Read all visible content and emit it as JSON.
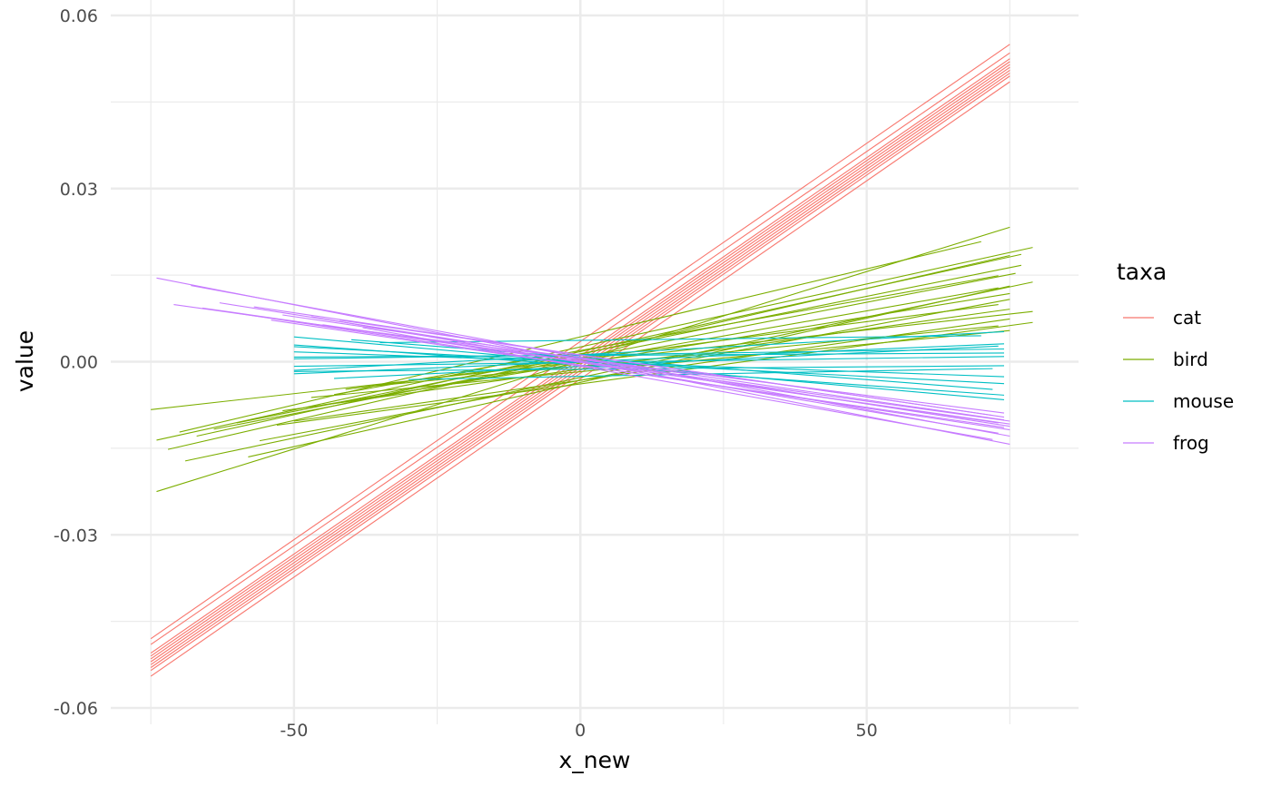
{
  "chart_data": {
    "type": "line",
    "title": "",
    "xlabel": "x_new",
    "ylabel": "value",
    "xlim": [
      -82,
      87
    ],
    "ylim": [
      -0.06,
      0.06
    ],
    "x_ticks": [
      -50,
      0,
      50
    ],
    "x_tick_labels": [
      "-50",
      "0",
      "50"
    ],
    "x_minor_ticks": [
      -75,
      -25,
      25,
      75
    ],
    "y_ticks": [
      -0.06,
      -0.03,
      0.0,
      0.03,
      0.06
    ],
    "y_tick_labels": [
      "-0.06",
      "-0.03",
      "0.00",
      "0.03",
      "0.06"
    ],
    "y_minor_ticks": [
      -0.045,
      -0.015,
      0.015,
      0.045
    ],
    "grid": true,
    "legend": {
      "title": "taxa",
      "position": "right"
    },
    "series": [
      {
        "name": "cat",
        "color": "#F8766D",
        "lines": [
          {
            "x": [
              -75,
              75
            ],
            "y": [
              -0.048,
              0.055
            ]
          },
          {
            "x": [
              -75,
              75
            ],
            "y": [
              -0.049,
              0.0535
            ]
          },
          {
            "x": [
              -75,
              75
            ],
            "y": [
              -0.0505,
              0.0525
            ]
          },
          {
            "x": [
              -75,
              75
            ],
            "y": [
              -0.051,
              0.052
            ]
          },
          {
            "x": [
              -75,
              75
            ],
            "y": [
              -0.0515,
              0.0515
            ]
          },
          {
            "x": [
              -75,
              75
            ],
            "y": [
              -0.052,
              0.051
            ]
          },
          {
            "x": [
              -75,
              75
            ],
            "y": [
              -0.0525,
              0.0505
            ]
          },
          {
            "x": [
              -75,
              75
            ],
            "y": [
              -0.053,
              0.05
            ]
          },
          {
            "x": [
              -75,
              75
            ],
            "y": [
              -0.0535,
              0.0495
            ]
          },
          {
            "x": [
              -75,
              75
            ],
            "y": [
              -0.0545,
              0.0485
            ]
          }
        ]
      },
      {
        "name": "bird",
        "color": "#7CAE00",
        "lines": [
          {
            "x": [
              -74,
              75
            ],
            "y": [
              -0.0225,
              0.0233
            ]
          },
          {
            "x": [
              -75,
              79
            ],
            "y": [
              -0.0083,
              0.0087
            ]
          },
          {
            "x": [
              -74,
              79
            ],
            "y": [
              -0.0136,
              0.0198
            ]
          },
          {
            "x": [
              -72,
              75
            ],
            "y": [
              -0.0152,
              0.0184
            ]
          },
          {
            "x": [
              -70,
              70
            ],
            "y": [
              -0.0122,
              0.0208
            ]
          },
          {
            "x": [
              -69,
              79
            ],
            "y": [
              -0.0172,
              0.0138
            ]
          },
          {
            "x": [
              -67,
              77
            ],
            "y": [
              -0.0129,
              0.0186
            ]
          },
          {
            "x": [
              -64,
              76
            ],
            "y": [
              -0.0117,
              0.0153
            ]
          },
          {
            "x": [
              -60,
              77
            ],
            "y": [
              -0.0106,
              0.0167
            ]
          },
          {
            "x": [
              -58,
              75
            ],
            "y": [
              -0.0165,
              0.0131
            ]
          },
          {
            "x": [
              -56,
              75
            ],
            "y": [
              -0.0137,
              0.0108
            ]
          },
          {
            "x": [
              -53,
              79
            ],
            "y": [
              -0.011,
              0.0068
            ]
          },
          {
            "x": [
              -52,
              75
            ],
            "y": [
              -0.0085,
              0.0091
            ]
          },
          {
            "x": [
              -50,
              75
            ],
            "y": [
              -0.0103,
              0.0074
            ]
          },
          {
            "x": [
              -47,
              75
            ],
            "y": [
              -0.0062,
              0.0054
            ]
          },
          {
            "x": [
              -45,
              75
            ],
            "y": [
              -0.0075,
              0.0118
            ]
          },
          {
            "x": [
              -43,
              73
            ],
            "y": [
              -0.0057,
              0.0149
            ]
          },
          {
            "x": [
              -41,
              73
            ],
            "y": [
              -0.0048,
              0.0099
            ]
          },
          {
            "x": [
              -38,
              73
            ],
            "y": [
              -0.0065,
              0.0128
            ]
          },
          {
            "x": [
              -36,
              73
            ],
            "y": [
              -0.0042,
              0.0062
            ]
          }
        ]
      },
      {
        "name": "mouse",
        "color": "#00BFC4",
        "lines": [
          {
            "x": [
              -50,
              74
            ],
            "y": [
              0.0043,
              -0.0066
            ]
          },
          {
            "x": [
              -50,
              74
            ],
            "y": [
              0.0029,
              -0.0058
            ]
          },
          {
            "x": [
              -50,
              74
            ],
            "y": [
              0.0026,
              -0.0038
            ]
          },
          {
            "x": [
              -50,
              74
            ],
            "y": [
              0.0017,
              -0.0026
            ]
          },
          {
            "x": [
              -50,
              74
            ],
            "y": [
              0.0008,
              0.0015
            ]
          },
          {
            "x": [
              -50,
              74
            ],
            "y": [
              0.0005,
              0.0022
            ]
          },
          {
            "x": [
              -50,
              74
            ],
            "y": [
              -0.0008,
              0.0009
            ]
          },
          {
            "x": [
              -50,
              74
            ],
            "y": [
              -0.0015,
              0.0052
            ]
          },
          {
            "x": [
              -50,
              74
            ],
            "y": [
              -0.0017,
              -0.0007
            ]
          },
          {
            "x": [
              -50,
              74
            ],
            "y": [
              -0.0021,
              0.0031
            ]
          },
          {
            "x": [
              -43,
              73
            ],
            "y": [
              -0.0029,
              0.0027
            ]
          },
          {
            "x": [
              -40,
              72
            ],
            "y": [
              0.0038,
              -0.0048
            ]
          },
          {
            "x": [
              -35,
              70
            ],
            "y": [
              0.0033,
              0.0045
            ]
          },
          {
            "x": [
              -30,
              72
            ],
            "y": [
              -0.0031,
              -0.0012
            ]
          }
        ]
      },
      {
        "name": "frog",
        "color": "#C77CFF",
        "lines": [
          {
            "x": [
              -74,
              75
            ],
            "y": [
              0.0145,
              -0.0143
            ]
          },
          {
            "x": [
              -71,
              75
            ],
            "y": [
              0.0099,
              -0.0103
            ]
          },
          {
            "x": [
              -68,
              75
            ],
            "y": [
              0.0132,
              -0.0129
            ]
          },
          {
            "x": [
              -66,
              75
            ],
            "y": [
              0.0093,
              -0.0108
            ]
          },
          {
            "x": [
              -63,
              75
            ],
            "y": [
              0.0102,
              -0.0112
            ]
          },
          {
            "x": [
              -60,
              75
            ],
            "y": [
              0.0084,
              -0.0118
            ]
          },
          {
            "x": [
              -57,
              74
            ],
            "y": [
              0.0095,
              -0.0096
            ]
          },
          {
            "x": [
              -54,
              74
            ],
            "y": [
              0.0072,
              -0.0114
            ]
          },
          {
            "x": [
              -52,
              74
            ],
            "y": [
              0.0081,
              -0.0101
            ]
          },
          {
            "x": [
              -50,
              74
            ],
            "y": [
              0.0069,
              -0.0089
            ]
          },
          {
            "x": [
              -47,
              73
            ],
            "y": [
              0.0078,
              -0.0124
            ]
          },
          {
            "x": [
              -45,
              73
            ],
            "y": [
              0.0064,
              -0.0106
            ]
          },
          {
            "x": [
              -42,
              72
            ],
            "y": [
              0.0072,
              -0.0093
            ]
          },
          {
            "x": [
              -38,
              72
            ],
            "y": [
              0.0059,
              -0.0135
            ]
          }
        ]
      }
    ]
  }
}
